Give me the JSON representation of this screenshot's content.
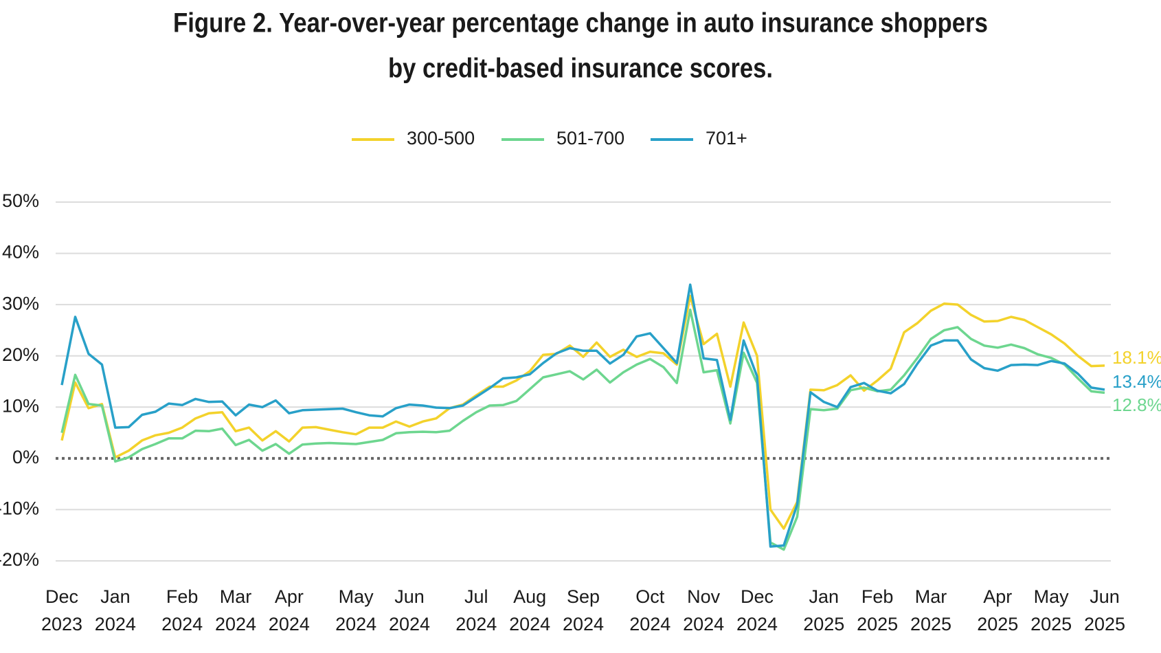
{
  "chart_data": {
    "type": "line",
    "title": [
      "Figure 2. Year-over-year percentage change in auto insurance shoppers",
      "by credit-based insurance scores."
    ],
    "categories": [
      "Dec 2023",
      null,
      null,
      null,
      "Jan 2024",
      null,
      null,
      null,
      null,
      "Feb 2024",
      null,
      null,
      null,
      "Mar 2024",
      null,
      null,
      null,
      "Apr 2024",
      null,
      null,
      null,
      null,
      "May 2024",
      null,
      null,
      null,
      "Jun 2024",
      null,
      null,
      null,
      null,
      "Jul 2024",
      null,
      null,
      null,
      "Aug 2024",
      null,
      null,
      null,
      "Sep 2024",
      null,
      null,
      null,
      null,
      "Oct 2024",
      null,
      null,
      null,
      "Nov 2024",
      null,
      null,
      null,
      "Dec 2024",
      null,
      null,
      null,
      null,
      "Jan 2025",
      null,
      null,
      null,
      "Feb 2025",
      null,
      null,
      null,
      "Mar 2025",
      null,
      null,
      null,
      null,
      "Apr 2025",
      null,
      null,
      null,
      "May 2025",
      null,
      null,
      null,
      "Jun 2025"
    ],
    "series": [
      {
        "name": "300-500",
        "color": "#f3d22b",
        "end_label": "18.1%",
        "values": [
          3.5,
          14.8,
          9.8,
          10.6,
          0.2,
          1.5,
          3.5,
          4.5,
          5,
          6,
          7.8,
          8.8,
          9,
          5.3,
          6,
          3.5,
          5.3,
          3.3,
          6,
          6.1,
          5.6,
          5.1,
          4.7,
          6,
          6,
          7.2,
          6.2,
          7.2,
          7.8,
          9.8,
          10.5,
          12.3,
          14,
          14,
          15.2,
          17,
          20.2,
          20.4,
          22,
          19.8,
          22.6,
          19.8,
          21.2,
          19.8,
          20.8,
          20.5,
          18.3,
          31.7,
          22.3,
          24.3,
          14,
          26.5,
          20,
          -10,
          -13.7,
          -8.5,
          13.4,
          13.3,
          14.3,
          16.2,
          13.2,
          15.2,
          17.5,
          24.6,
          26.4,
          28.8,
          30.2,
          30,
          28,
          26.7,
          26.8,
          27.6,
          27,
          25.6,
          24.2,
          22.4,
          20,
          18,
          18.1
        ]
      },
      {
        "name": "501-700",
        "color": "#6dd68f",
        "end_label": "12.8%",
        "values": [
          5,
          16.3,
          10.6,
          10.3,
          -0.6,
          0.2,
          1.8,
          2.8,
          3.9,
          3.9,
          5.4,
          5.3,
          5.8,
          2.6,
          3.6,
          1.5,
          2.8,
          0.9,
          2.7,
          2.9,
          3,
          2.9,
          2.8,
          3.2,
          3.6,
          4.9,
          5.1,
          5.2,
          5.1,
          5.4,
          7.3,
          9,
          10.3,
          10.4,
          11.2,
          13.5,
          15.8,
          16.4,
          17,
          15.4,
          17.3,
          14.8,
          16.8,
          18.3,
          19.4,
          17.8,
          14.7,
          29,
          16.8,
          17.2,
          6.8,
          20.6,
          14.7,
          -16.4,
          -17.8,
          -11.4,
          9.6,
          9.4,
          9.7,
          13.3,
          13.8,
          13.1,
          13.4,
          16.2,
          19.6,
          23.3,
          25,
          25.6,
          23.3,
          22,
          21.6,
          22.2,
          21.5,
          20.3,
          19.6,
          18.3,
          15.6,
          13.1,
          12.8
        ]
      },
      {
        "name": "701+",
        "color": "#28a0c8",
        "end_label": "13.4%",
        "values": [
          14.3,
          27.6,
          20.4,
          18.3,
          6,
          6.1,
          8.5,
          9.1,
          10.7,
          10.4,
          11.6,
          11,
          11.1,
          8.4,
          10.5,
          10,
          11.3,
          8.8,
          9.4,
          9.5,
          9.6,
          9.7,
          9,
          8.4,
          8.2,
          9.8,
          10.5,
          10.3,
          9.9,
          9.8,
          10.3,
          12,
          13.7,
          15.6,
          15.8,
          16.4,
          18.6,
          20.5,
          21.5,
          21,
          21,
          18.5,
          20.2,
          23.8,
          24.4,
          21.5,
          18.6,
          33.9,
          19.5,
          19.2,
          7.5,
          23,
          16,
          -17.2,
          -17,
          -9,
          12.9,
          11,
          10,
          13.9,
          14.7,
          13.2,
          12.7,
          14.5,
          18.5,
          22,
          23,
          23,
          19.3,
          17.6,
          17.1,
          18.2,
          18.3,
          18.2,
          19,
          18.5,
          16.5,
          13.8,
          13.4
        ]
      }
    ],
    "ylim": [
      -20,
      50
    ],
    "yticks": [
      {
        "value": -20,
        "label": "-20%"
      },
      {
        "value": -10,
        "label": "-10%"
      },
      {
        "value": 0,
        "label": "0%"
      },
      {
        "value": 10,
        "label": "10%"
      },
      {
        "value": 20,
        "label": "20%"
      },
      {
        "value": 30,
        "label": "30%"
      },
      {
        "value": 40,
        "label": "40%"
      },
      {
        "value": 50,
        "label": "50%"
      }
    ],
    "grid": true,
    "zero_line": "dotted",
    "legend": "top"
  }
}
